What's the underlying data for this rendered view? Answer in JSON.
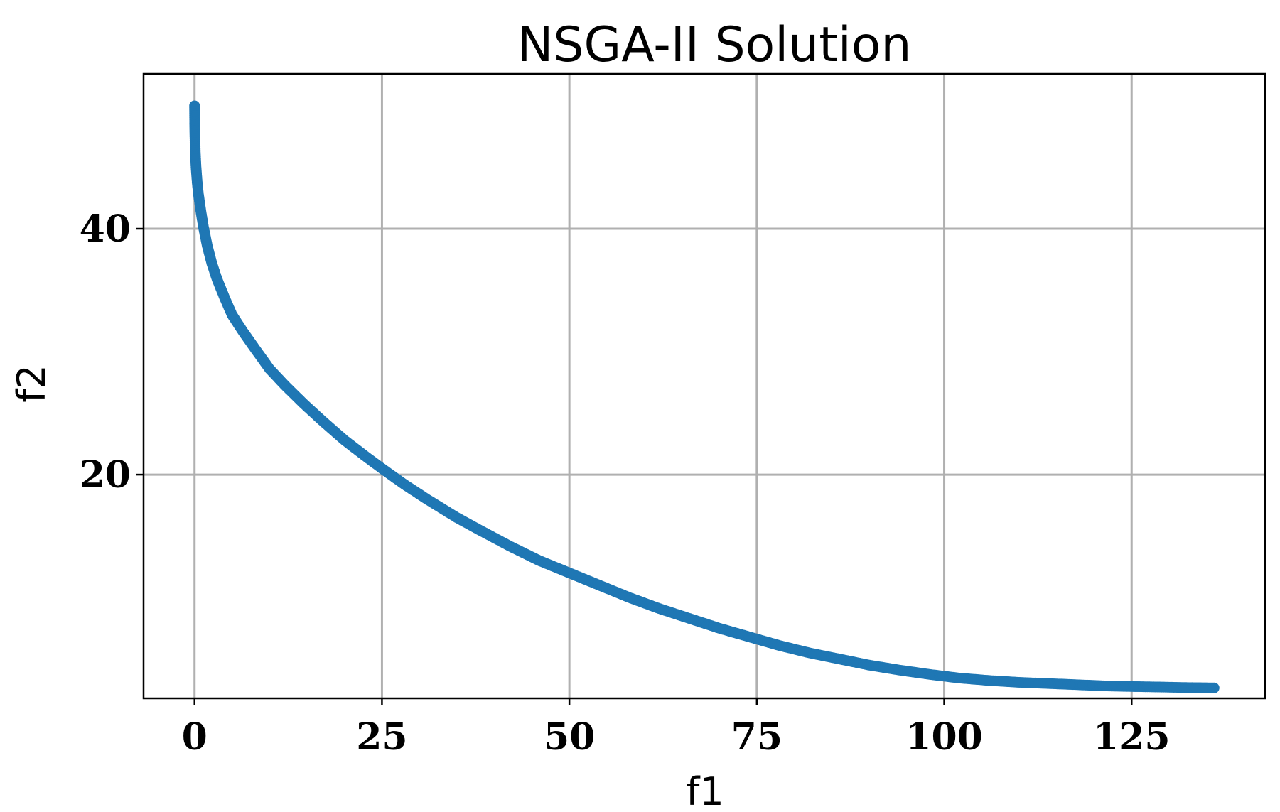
{
  "chart_data": {
    "type": "scatter",
    "title": "NSGA-II Solution",
    "xlabel": "f1",
    "ylabel": "f2",
    "xlim": [
      -6.8,
      142.8
    ],
    "ylim": [
      1.8,
      52.6
    ],
    "xticks": [
      0,
      25,
      50,
      75,
      100,
      125
    ],
    "yticks": [
      20,
      40
    ],
    "grid": true,
    "color": "#1f77b4",
    "series": [
      {
        "x": [
          0.0,
          0.02,
          0.05,
          0.1,
          0.2,
          0.35,
          0.5,
          0.8,
          1.2,
          1.7,
          2.3,
          3.0,
          4.0,
          5.0,
          6.5,
          8.0,
          10.0,
          12.0,
          14.5,
          17.0,
          20.0,
          23.0,
          25.0,
          28.0,
          31.0,
          35.0,
          38.0,
          42.0,
          46.0,
          50.0,
          54.0,
          58.0,
          62.0,
          66.0,
          70.0,
          74.0,
          78.0,
          82.0,
          86.0,
          90.0,
          94.0,
          98.0,
          102.0,
          106.0,
          110.0,
          114.0,
          118.0,
          122.0,
          126.0,
          129.0,
          132.0,
          136.0
        ],
        "y": [
          50.0,
          48.6,
          47.5,
          46.2,
          45.0,
          43.8,
          42.9,
          41.6,
          40.1,
          38.6,
          37.2,
          35.9,
          34.4,
          33.0,
          31.6,
          30.3,
          28.6,
          27.3,
          25.8,
          24.4,
          22.8,
          21.4,
          20.5,
          19.2,
          18.0,
          16.5,
          15.5,
          14.2,
          13.0,
          12.0,
          11.0,
          10.0,
          9.1,
          8.3,
          7.5,
          6.8,
          6.1,
          5.5,
          5.0,
          4.5,
          4.1,
          3.75,
          3.45,
          3.25,
          3.1,
          3.0,
          2.9,
          2.8,
          2.75,
          2.72,
          2.68,
          2.65
        ]
      }
    ]
  }
}
